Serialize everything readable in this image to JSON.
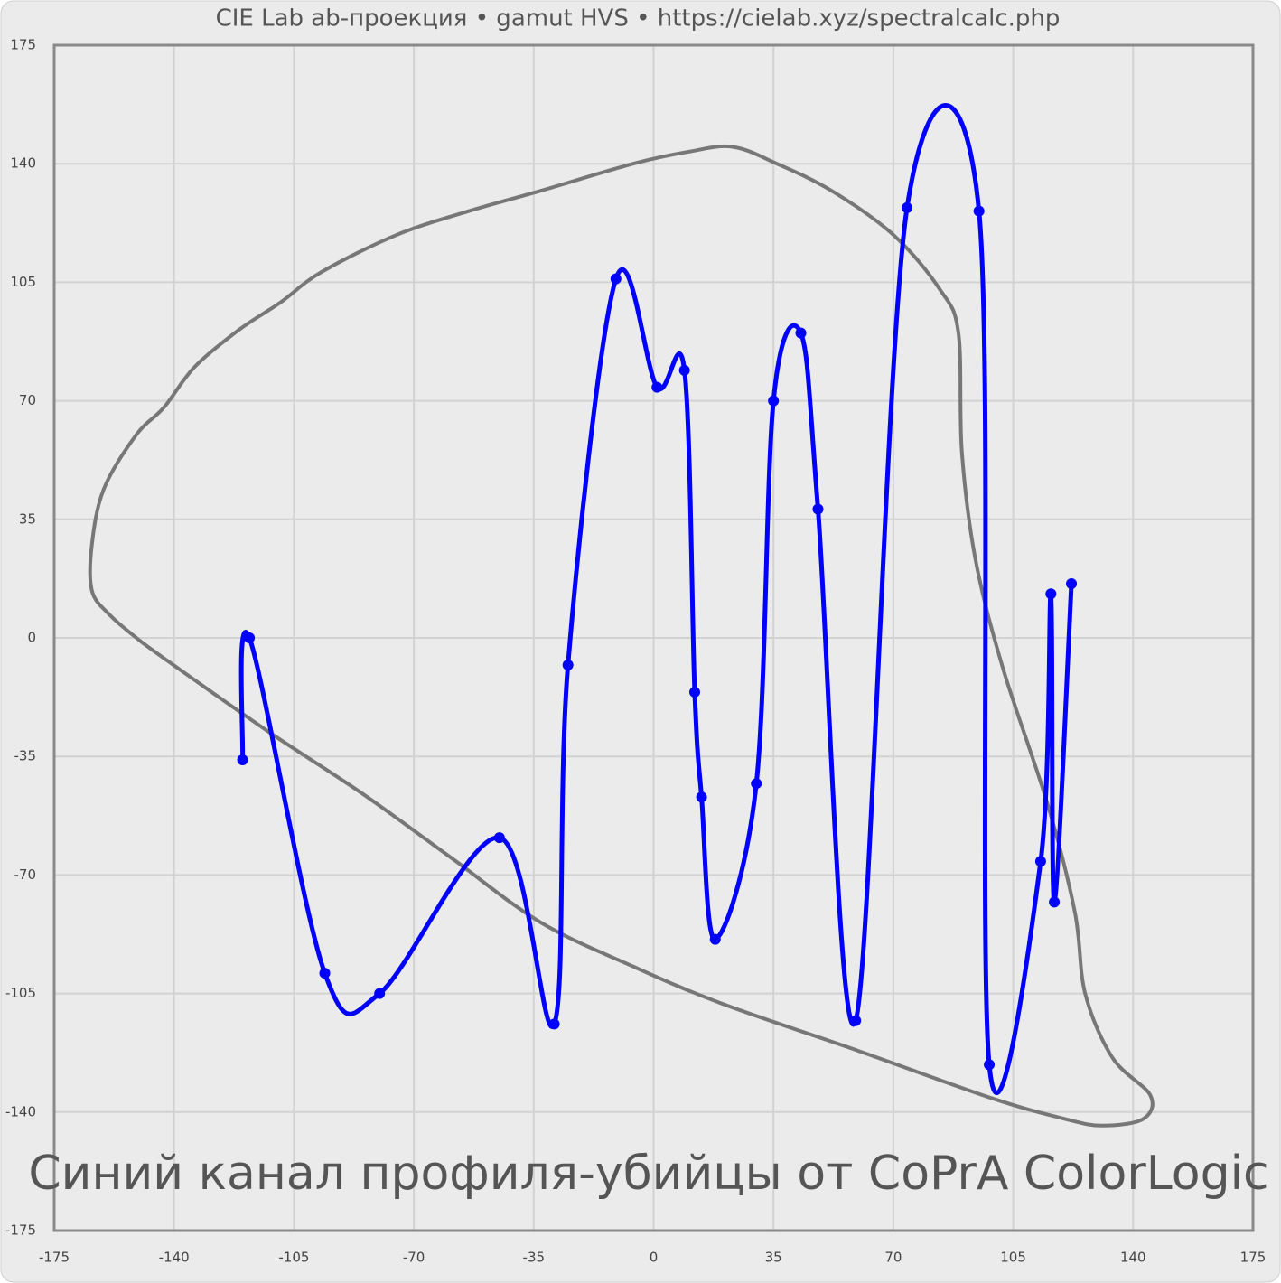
{
  "chart_data": {
    "type": "line",
    "title": "CIE Lab ab-проекция  •  gamut HVS  •  https://cielab.xyz/spectralcalc.php",
    "annotation": "Синий канал профиля-убийцы от CoPrA ColorLogic",
    "xlim": [
      -175,
      175
    ],
    "ylim": [
      -175,
      175
    ],
    "xticks": [
      -175,
      -140,
      -105,
      -70,
      -35,
      0,
      35,
      70,
      105,
      140,
      175
    ],
    "yticks": [
      -175,
      -140,
      -105,
      -70,
      -35,
      0,
      35,
      70,
      105,
      140,
      175
    ],
    "grid": true,
    "series": [
      {
        "color": "#777777",
        "closed": true,
        "markers": false,
        "x": [
          -164,
          -164,
          -160.5,
          -151,
          -143,
          -134,
          -121,
          -109,
          -97,
          -75,
          -54,
          -33,
          -6,
          10,
          23,
          36,
          52,
          70,
          83.5,
          89,
          90,
          94,
          102,
          115,
          123,
          126,
          134,
          145,
          143,
          131,
          120,
          99,
          60,
          20,
          -6,
          -33,
          -59,
          -85,
          -112,
          -143,
          -151,
          -159
        ],
        "values": [
          14,
          27.5,
          44,
          60,
          68,
          80,
          91,
          99,
          108,
          119,
          126,
          132,
          140,
          143.5,
          145,
          140,
          132,
          119,
          103,
          90,
          55,
          23,
          -9,
          -49,
          -81,
          -105,
          -124,
          -135,
          -142,
          -144,
          -142,
          -136,
          -122,
          -108,
          -97,
          -84,
          -65,
          -46,
          -28,
          -6,
          0,
          7
        ]
      },
      {
        "color": "#0000ff",
        "closed": false,
        "markers": true,
        "x": [
          -120,
          -118,
          -96,
          -80,
          -45,
          -29,
          -25,
          -11,
          1,
          9,
          12,
          14,
          18,
          30,
          35,
          43,
          48,
          59,
          74,
          95,
          98,
          113,
          116,
          117,
          122
        ],
        "values": [
          -36,
          0,
          -99,
          -105,
          -59,
          -114,
          -8,
          106,
          74,
          79,
          -16,
          -47,
          -89,
          -43,
          70,
          90,
          38,
          -113,
          127,
          126,
          -126,
          -66,
          13,
          -78,
          16
        ]
      }
    ]
  }
}
